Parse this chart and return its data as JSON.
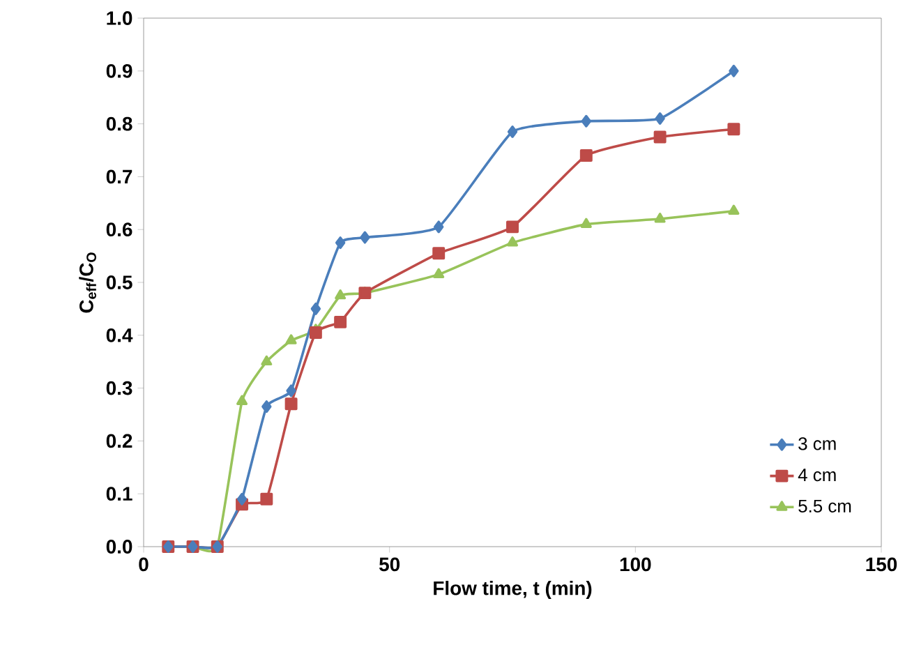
{
  "chart_data": {
    "type": "line",
    "xlabel": "Flow time, t (min)",
    "ylabel": "C$_{eff}$/C$_{O}$",
    "x": [
      5,
      10,
      15,
      20,
      25,
      30,
      35,
      40,
      45,
      60,
      75,
      90,
      105,
      120
    ],
    "series": [
      {
        "name": "3 cm",
        "color": "#4a7ebb",
        "marker": "diamond",
        "values": [
          0,
          0,
          0,
          0.09,
          0.265,
          0.295,
          0.45,
          0.575,
          0.585,
          0.605,
          0.785,
          0.805,
          0.81,
          0.9
        ]
      },
      {
        "name": "4 cm",
        "color": "#be4b48",
        "marker": "square",
        "values": [
          0,
          0,
          0,
          0.08,
          0.09,
          0.27,
          0.405,
          0.425,
          0.48,
          0.555,
          0.605,
          0.74,
          0.775,
          0.79
        ]
      },
      {
        "name": "5.5 cm",
        "color": "#98c35a",
        "marker": "triangle",
        "values": [
          0,
          0,
          0,
          0.275,
          0.35,
          0.39,
          0.41,
          0.475,
          0.48,
          0.515,
          0.575,
          0.61,
          0.62,
          0.635
        ]
      }
    ],
    "xlim": [
      0,
      150
    ],
    "xticks": [
      0,
      50,
      100,
      150
    ],
    "ylim": [
      0,
      1
    ],
    "yticks": [
      {
        "value": 0,
        "label": "0.0"
      },
      {
        "value": 0.1,
        "label": "0.1"
      },
      {
        "value": 0.2,
        "label": "0.2"
      },
      {
        "value": 0.3,
        "label": "0.3"
      },
      {
        "value": 0.4,
        "label": "0.4"
      },
      {
        "value": 0.5,
        "label": "0.5"
      },
      {
        "value": 0.6,
        "label": "0.6"
      },
      {
        "value": 0.7,
        "label": "0.7"
      },
      {
        "value": 0.8,
        "label": "0.8"
      },
      {
        "value": 0.9,
        "label": "0.9"
      },
      {
        "value": 1,
        "label": "1.0"
      }
    ],
    "grid": false,
    "legend": "bottom right",
    "line_style": "solid"
  }
}
